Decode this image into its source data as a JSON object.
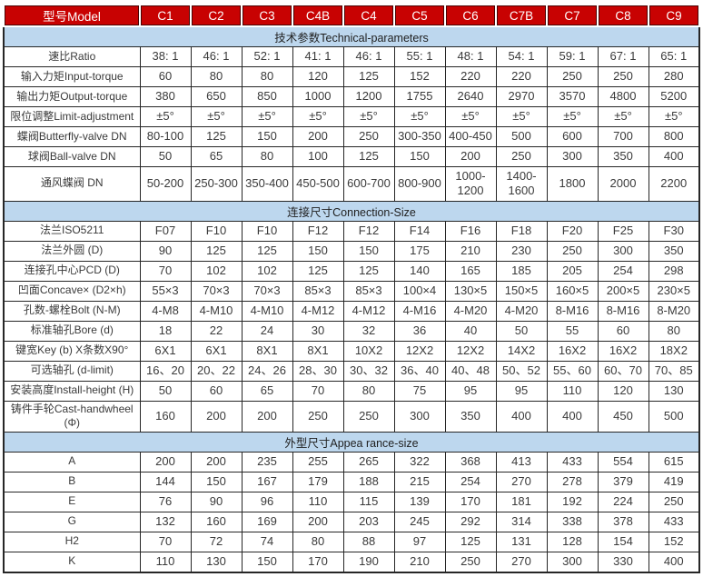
{
  "colors": {
    "header_bg": "#c80202",
    "header_text": "#ffffff",
    "band_bg": "#bdd7ee",
    "border": "#262626",
    "text": "#3a3a3a"
  },
  "table": {
    "header": {
      "label_col": "型号Model",
      "models": [
        "C1",
        "C2",
        "C3",
        "C4B",
        "C4",
        "C5",
        "C6",
        "C7B",
        "C7",
        "C8",
        "C9"
      ]
    },
    "sections": [
      {
        "title": "技术参数Technical-parameters",
        "rows": [
          {
            "label": "速比Ratio",
            "values": [
              "38: 1",
              "46: 1",
              "52: 1",
              "41: 1",
              "46: 1",
              "55: 1",
              "48: 1",
              "54: 1",
              "59: 1",
              "67: 1",
              "65: 1"
            ]
          },
          {
            "label": "输入力矩Input-torque",
            "values": [
              "60",
              "80",
              "80",
              "120",
              "125",
              "152",
              "220",
              "220",
              "250",
              "250",
              "280"
            ]
          },
          {
            "label": "输出力矩Output-torque",
            "values": [
              "380",
              "650",
              "850",
              "1000",
              "1200",
              "1755",
              "2640",
              "2970",
              "3570",
              "4800",
              "5200"
            ]
          },
          {
            "label": "限位调整Limit-adjustment",
            "values": [
              "±5°",
              "±5°",
              "±5°",
              "±5°",
              "±5°",
              "±5°",
              "±5°",
              "±5°",
              "±5°",
              "±5°",
              "±5°"
            ]
          },
          {
            "label": "蝶阀Butterfly-valve DN",
            "values": [
              "80-100",
              "125",
              "150",
              "200",
              "250",
              "300-350",
              "400-450",
              "500",
              "600",
              "700",
              "800"
            ]
          },
          {
            "label": "球阀Ball-valve DN",
            "values": [
              "50",
              "65",
              "80",
              "100",
              "125",
              "150",
              "200",
              "250",
              "300",
              "350",
              "400"
            ]
          },
          {
            "label": "通风蝶阀 DN",
            "values": [
              "50-200",
              "250-300",
              "350-400",
              "450-500",
              "600-700",
              "800-900",
              "1000-1200",
              "1400-1600",
              "1800",
              "2000",
              "2200"
            ]
          }
        ]
      },
      {
        "title": "连接尺寸Connection-Size",
        "rows": [
          {
            "label": "法兰ISO5211",
            "values": [
              "F07",
              "F10",
              "F10",
              "F12",
              "F12",
              "F14",
              "F16",
              "F18",
              "F20",
              "F25",
              "F30"
            ]
          },
          {
            "label": "法兰外圆 (D)",
            "values": [
              "90",
              "125",
              "125",
              "150",
              "150",
              "175",
              "210",
              "230",
              "250",
              "300",
              "350"
            ]
          },
          {
            "label": "连接孔中心PCD (D)",
            "values": [
              "70",
              "102",
              "102",
              "125",
              "125",
              "140",
              "165",
              "185",
              "205",
              "254",
              "298"
            ]
          },
          {
            "label": "凹面Concave× (D2×h)",
            "values": [
              "55×3",
              "70×3",
              "70×3",
              "85×3",
              "85×3",
              "100×4",
              "130×5",
              "150×5",
              "160×5",
              "200×5",
              "230×5"
            ]
          },
          {
            "label": "孔数-螺栓Bolt (N-M)",
            "values": [
              "4-M8",
              "4-M10",
              "4-M10",
              "4-M12",
              "4-M12",
              "4-M16",
              "4-M20",
              "4-M20",
              "8-M16",
              "8-M16",
              "8-M20"
            ]
          },
          {
            "label": "标准轴孔Bore (d)",
            "values": [
              "18",
              "22",
              "24",
              "30",
              "32",
              "36",
              "40",
              "50",
              "55",
              "60",
              "80"
            ]
          },
          {
            "label": "键宽Key (b) X条数X90°",
            "values": [
              "6X1",
              "6X1",
              "8X1",
              "8X1",
              "10X2",
              "12X2",
              "12X2",
              "14X2",
              "16X2",
              "16X2",
              "18X2"
            ]
          },
          {
            "label": "可选轴孔 (d-limit)",
            "values": [
              "16、20",
              "20、22",
              "24、26",
              "28、30",
              "30、32",
              "36、40",
              "40、48",
              "50、52",
              "55、60",
              "60、70",
              "70、85"
            ]
          },
          {
            "label": "安装高度Install-height (H)",
            "values": [
              "50",
              "60",
              "65",
              "70",
              "80",
              "75",
              "95",
              "95",
              "110",
              "120",
              "130"
            ]
          },
          {
            "label": "铸件手轮Cast-handwheel (Φ)",
            "values": [
              "160",
              "200",
              "200",
              "250",
              "250",
              "300",
              "350",
              "400",
              "400",
              "450",
              "500"
            ]
          }
        ]
      },
      {
        "title": "外型尺寸Appea rance-size",
        "rows": [
          {
            "label": "A",
            "values": [
              "200",
              "200",
              "235",
              "255",
              "265",
              "322",
              "368",
              "413",
              "433",
              "554",
              "615"
            ]
          },
          {
            "label": "B",
            "values": [
              "144",
              "150",
              "167",
              "179",
              "188",
              "215",
              "254",
              "270",
              "278",
              "379",
              "419"
            ]
          },
          {
            "label": "E",
            "values": [
              "76",
              "90",
              "96",
              "110",
              "115",
              "139",
              "170",
              "181",
              "192",
              "224",
              "250"
            ]
          },
          {
            "label": "G",
            "values": [
              "132",
              "160",
              "169",
              "200",
              "203",
              "245",
              "292",
              "314",
              "338",
              "378",
              "433"
            ]
          },
          {
            "label": "H2",
            "values": [
              "70",
              "72",
              "74",
              "80",
              "88",
              "97",
              "125",
              "131",
              "128",
              "154",
              "152"
            ]
          },
          {
            "label": "K",
            "values": [
              "110",
              "130",
              "150",
              "170",
              "190",
              "210",
              "250",
              "270",
              "300",
              "330",
              "400"
            ]
          }
        ]
      }
    ]
  }
}
